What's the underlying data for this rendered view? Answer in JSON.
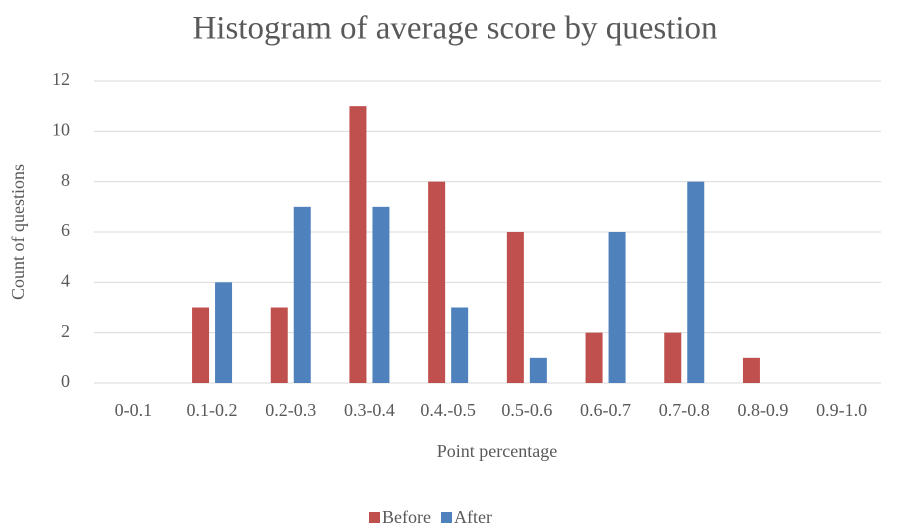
{
  "chart_data": {
    "type": "bar",
    "title": "Histogram of average score by question",
    "x_label": "Point percentage",
    "y_label": "Count of questions",
    "categories": [
      "0-0.1",
      "0.1-0.2",
      "0.2-0.3",
      "0.3-0.4",
      "0.4.-0.5",
      "0.5-0.6",
      "0.6-0.7",
      "0.7-0.8",
      "0.8-0.9",
      "0.9-1.0"
    ],
    "series": [
      {
        "name": "Before",
        "color": "#c0504d",
        "values": [
          0,
          3,
          3,
          11,
          8,
          6,
          2,
          2,
          1,
          0
        ]
      },
      {
        "name": "After",
        "color": "#4f81bd",
        "values": [
          0,
          4,
          7,
          7,
          3,
          1,
          6,
          8,
          0,
          0
        ]
      }
    ],
    "ylim": [
      0,
      12
    ],
    "yticks": [
      0,
      2,
      4,
      6,
      8,
      10,
      12
    ],
    "grid": true,
    "legend": "bottom"
  }
}
